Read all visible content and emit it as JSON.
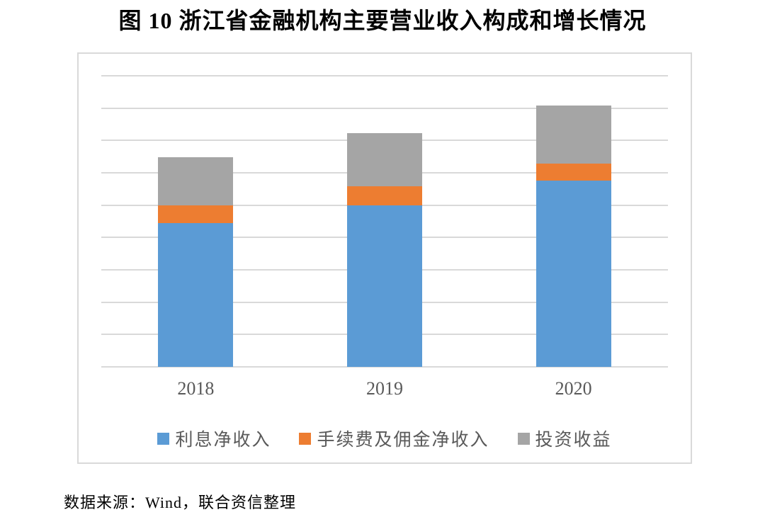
{
  "title": "图 10 浙江省金融机构主要营业收入构成和增长情况",
  "source_note": "数据来源：Wind，联合资信整理",
  "colors": {
    "series_interest": "#5B9BD5",
    "series_fees": "#ED7D31",
    "series_investment": "#A5A5A5",
    "gridline": "#D9D9D9",
    "plot_border": "#D9D9D9",
    "axis_text": "#595959",
    "title_text": "#000000"
  },
  "chart_data": {
    "type": "bar",
    "stacked": true,
    "title": "图 10 浙江省金融机构主要营业收入构成和增长情况",
    "categories": [
      "2018",
      "2019",
      "2020"
    ],
    "series": [
      {
        "name": "利息净收入",
        "color": "#5B9BD5",
        "values": [
          4.45,
          5.0,
          5.77
        ]
      },
      {
        "name": "手续费及佣金净收入",
        "color": "#ED7D31",
        "values": [
          0.55,
          0.58,
          0.51
        ]
      },
      {
        "name": "投资收益",
        "color": "#A5A5A5",
        "values": [
          1.48,
          1.65,
          1.8
        ]
      }
    ],
    "xlabel": "",
    "ylabel": "",
    "ylim": [
      0,
      9
    ],
    "gridline_interval": 1,
    "y_tick_labels_visible": false,
    "grid": "horizontal",
    "legend_position": "bottom",
    "value_units": "relative (no y-axis scale labels shown in figure)"
  }
}
